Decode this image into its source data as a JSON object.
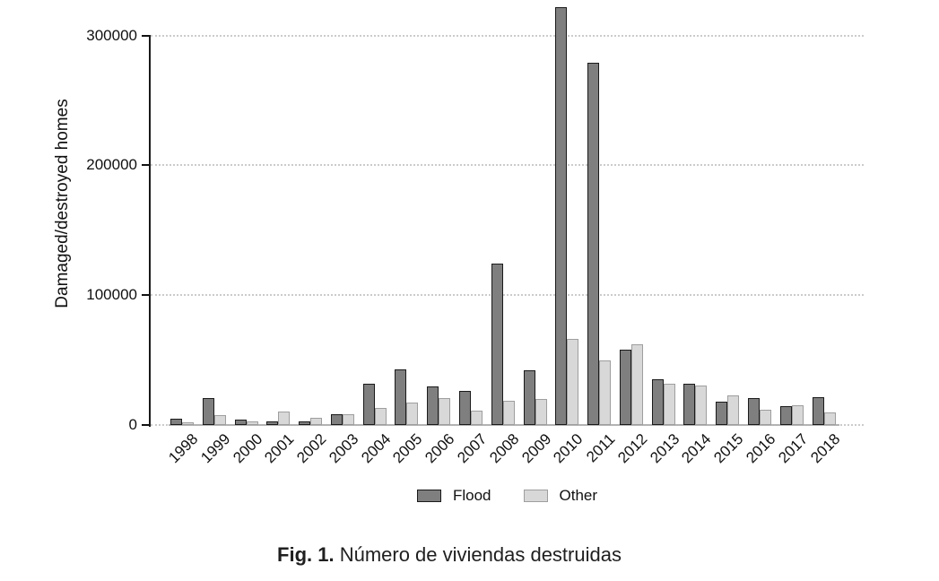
{
  "figure": {
    "caption_prefix": "Fig. 1.",
    "caption_text": " Número de viviendas destruidas"
  },
  "chart_data": {
    "type": "bar",
    "title": "",
    "xlabel": "",
    "ylabel": "Damaged/destroyed homes",
    "ylim": [
      0,
      325000
    ],
    "yticks": [
      0,
      100000,
      200000,
      300000
    ],
    "ytick_labels": [
      "0",
      "100000",
      "200000",
      "300000"
    ],
    "grid": "horizontal-dotted",
    "legend_position": "bottom-center",
    "categories": [
      "1998",
      "1999",
      "2000",
      "2001",
      "2002",
      "2003",
      "2004",
      "2005",
      "2006",
      "2007",
      "2008",
      "2009",
      "2010",
      "2011",
      "2012",
      "2013",
      "2014",
      "2015",
      "2016",
      "2017",
      "2018"
    ],
    "series": [
      {
        "name": "Flood",
        "fill": "#7f7f7f",
        "border": "#1a1a1a",
        "values": [
          5000,
          20500,
          4000,
          3000,
          2500,
          8000,
          32000,
          43000,
          30000,
          26000,
          124000,
          42000,
          322000,
          279000,
          58000,
          35000,
          32000,
          18000,
          21000,
          14500,
          21500
        ]
      },
      {
        "name": "Other",
        "fill": "#d8d8d8",
        "border": "#9e9e9e",
        "values": [
          2000,
          7500,
          3000,
          10500,
          5500,
          8500,
          13000,
          17000,
          21000,
          11000,
          18500,
          20000,
          66500,
          50000,
          62000,
          31500,
          30500,
          23000,
          12000,
          15000,
          9500
        ]
      }
    ]
  }
}
